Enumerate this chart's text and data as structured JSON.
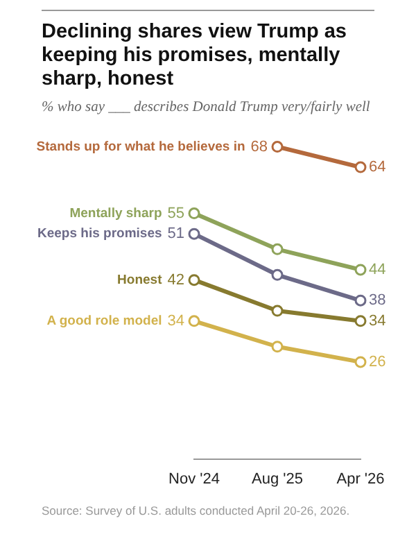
{
  "chart_data": {
    "type": "line",
    "title": "Declining shares view Trump as keeping his promises, mentally sharp, honest",
    "subtitle": "% who say ___ describes Donald Trump very/fairly well",
    "categories": [
      "Nov '24",
      "Aug '25",
      "Apr '26"
    ],
    "series": [
      {
        "name": "Stands up for what he believes in",
        "color": "#b4693c",
        "values": [
          null,
          68,
          64
        ],
        "value_labels": [
          null,
          "68",
          "64"
        ]
      },
      {
        "name": "Mentally sharp",
        "color": "#8ea35a",
        "values": [
          55,
          48,
          44
        ],
        "value_labels": [
          "55",
          null,
          "44"
        ]
      },
      {
        "name": "Keeps his promises",
        "color": "#6c6a88",
        "values": [
          51,
          43,
          38
        ],
        "value_labels": [
          "51",
          null,
          "38"
        ]
      },
      {
        "name": "Honest",
        "color": "#877a2f",
        "values": [
          42,
          36,
          34
        ],
        "value_labels": [
          "42",
          null,
          "34"
        ]
      },
      {
        "name": "A good role model",
        "color": "#d2b24c",
        "values": [
          34,
          29,
          26
        ],
        "value_labels": [
          "34",
          null,
          "26"
        ]
      }
    ],
    "marker": "circle",
    "grid": false,
    "legend": false,
    "tick_labels": "x",
    "annotations": [
      "Source: Survey of U.S. adults conducted April 20-26, 2026."
    ]
  }
}
